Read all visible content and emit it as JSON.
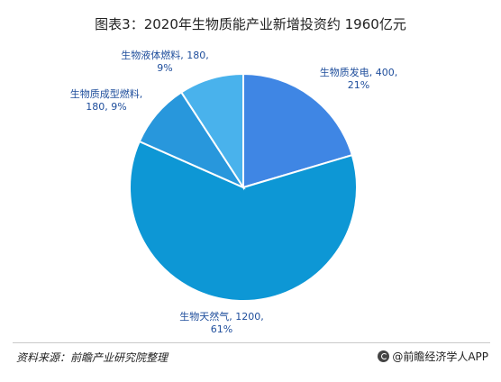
{
  "chart_data": {
    "type": "pie",
    "title": "图表3：2020年生物质能产业新增投资约 1960亿元",
    "slices": [
      {
        "name": "生物质发电",
        "value": 400,
        "percent": "21%",
        "color": "#3f86e4",
        "label_line1": "生物质发电, 400,",
        "label_line2": "21%"
      },
      {
        "name": "生物天然气",
        "value": 1200,
        "percent": "61%",
        "color": "#0d97d5",
        "label_line1": "生物天然气, 1200,",
        "label_line2": "61%"
      },
      {
        "name": "生物质成型燃料",
        "value": 180,
        "percent": "9%",
        "color": "#2897dc",
        "label_line1": "生物质成型燃料,",
        "label_line2": "180, 9%"
      },
      {
        "name": "生物液体燃料",
        "value": 180,
        "percent": "9%",
        "color": "#49b2ec",
        "label_line1": "生物液体燃料, 180,",
        "label_line2": "9%"
      }
    ]
  },
  "footer": {
    "source": "资料来源：前瞻产业研究院整理",
    "app": "@前瞻经济学人APP"
  }
}
